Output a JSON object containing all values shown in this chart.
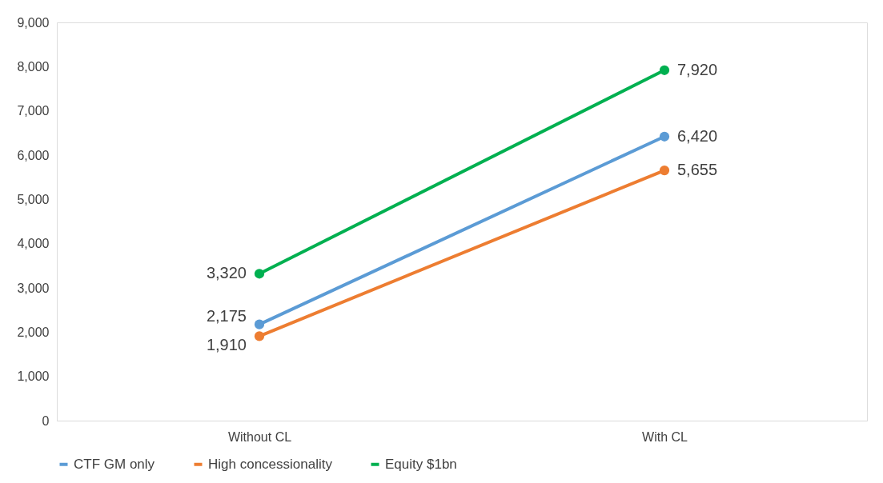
{
  "chart_data": {
    "type": "line",
    "categories": [
      "Without CL",
      "With CL"
    ],
    "series": [
      {
        "name": "CTF GM only",
        "color": "#5b9bd5",
        "values": [
          2175,
          6420
        ],
        "value_labels": [
          "2,175",
          "6,420"
        ]
      },
      {
        "name": "High concessionality",
        "color": "#ed7d31",
        "values": [
          1910,
          5655
        ],
        "value_labels": [
          "1,910",
          "5,655"
        ]
      },
      {
        "name": "Equity $1bn",
        "color": "#00b050",
        "values": [
          3320,
          7920
        ],
        "value_labels": [
          "3,320",
          "7,920"
        ]
      }
    ],
    "ylim": [
      0,
      9000
    ],
    "yticks": [
      0,
      {
        "value": 1000,
        "label": "1,000"
      },
      {
        "value": 2000,
        "label": "2,000"
      },
      {
        "value": 3000,
        "label": "3,000"
      },
      {
        "value": 4000,
        "label": "4,000"
      },
      {
        "value": 5000,
        "label": "5,000"
      },
      {
        "value": 6000,
        "label": "6,000"
      },
      {
        "value": 7000,
        "label": "7,000"
      },
      {
        "value": 8000,
        "label": "8,000"
      },
      {
        "value": 9000,
        "label": "9,000"
      }
    ],
    "grid": false,
    "legend": "bottom",
    "marker": "circle",
    "line_style": "solid"
  }
}
